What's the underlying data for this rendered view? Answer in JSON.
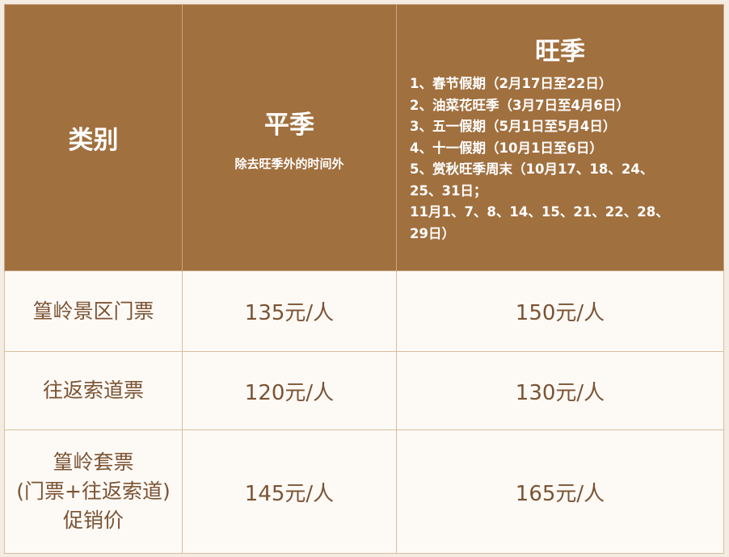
{
  "header": {
    "category": "类别",
    "off_season": {
      "title": "平季",
      "subtitle": "除去旺季外的时间外"
    },
    "peak_season": {
      "title": "旺季",
      "periods": [
        "1、春节假期（2月17日至22日）",
        "2、油菜花旺季（3月7日至4月6日）",
        "3、五一假期（5月1日至5月4日）",
        "4、十一假期（10月1日至6日）",
        "5、赏秋旺季周末（10月17、18、24、",
        "25、31日；",
        "11月1、7、8、14、15、21、22、28、",
        "29日）"
      ]
    }
  },
  "rows": [
    {
      "category": [
        "篁岭景区门票"
      ],
      "off_price": "135元/人",
      "peak_price": "150元/人"
    },
    {
      "category": [
        "往返索道票"
      ],
      "off_price": "120元/人",
      "peak_price": "130元/人"
    },
    {
      "category": [
        "篁岭套票",
        "(门票+往返索道)",
        "促销价"
      ],
      "off_price": "145元/人",
      "peak_price": "165元/人"
    }
  ],
  "colors": {
    "header_bg": "#a1703f",
    "body_bg": "#fdfaf6",
    "body_text": "#7b5333",
    "border": "#d8bd9c"
  }
}
